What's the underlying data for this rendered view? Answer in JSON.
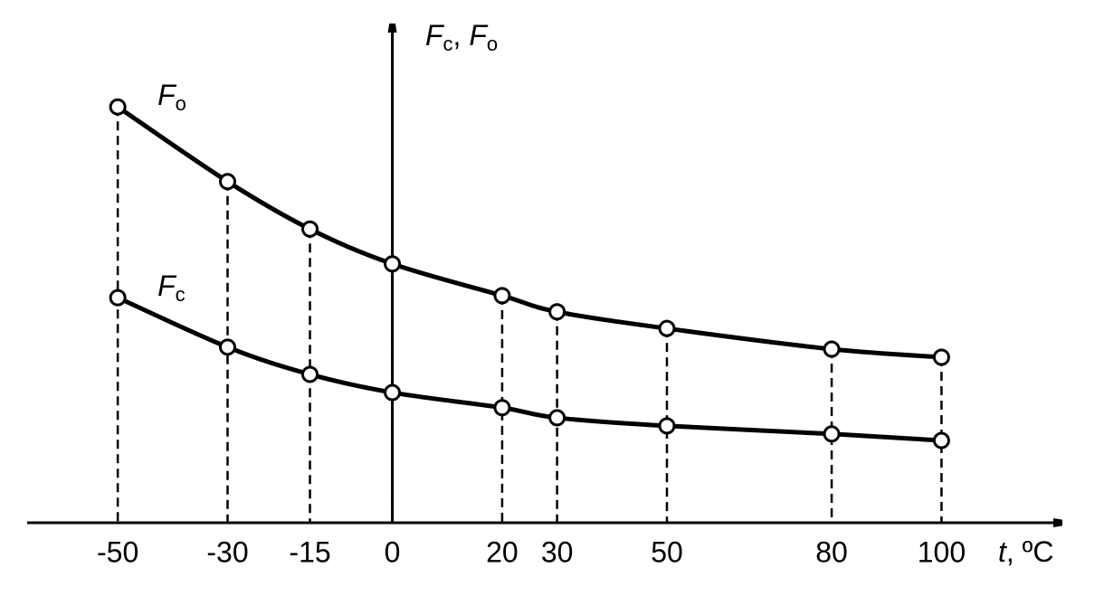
{
  "chart_data": {
    "type": "line",
    "x": [
      -50,
      -30,
      -15,
      0,
      20,
      30,
      50,
      80,
      100
    ],
    "series": [
      {
        "name": "Fo",
        "color": "#000000",
        "values": [
          82.4,
          67.6,
          58.2,
          51.3,
          45,
          41.8,
          38.5,
          34.4,
          32.8
        ]
      },
      {
        "name": "Fc",
        "color": "#000000",
        "values": [
          44.6,
          34.8,
          29.4,
          25.8,
          22.8,
          20.8,
          19.2,
          17.6,
          16.3
        ]
      }
    ],
    "xlabel": "t, ºC",
    "ylabel": "Fc, Fo",
    "xlim": [
      -66.5,
      123
    ],
    "ylim": [
      0,
      100
    ],
    "xticks": [
      -50,
      -30,
      -15,
      0,
      20,
      30,
      50,
      80,
      100
    ],
    "grid": false
  }
}
